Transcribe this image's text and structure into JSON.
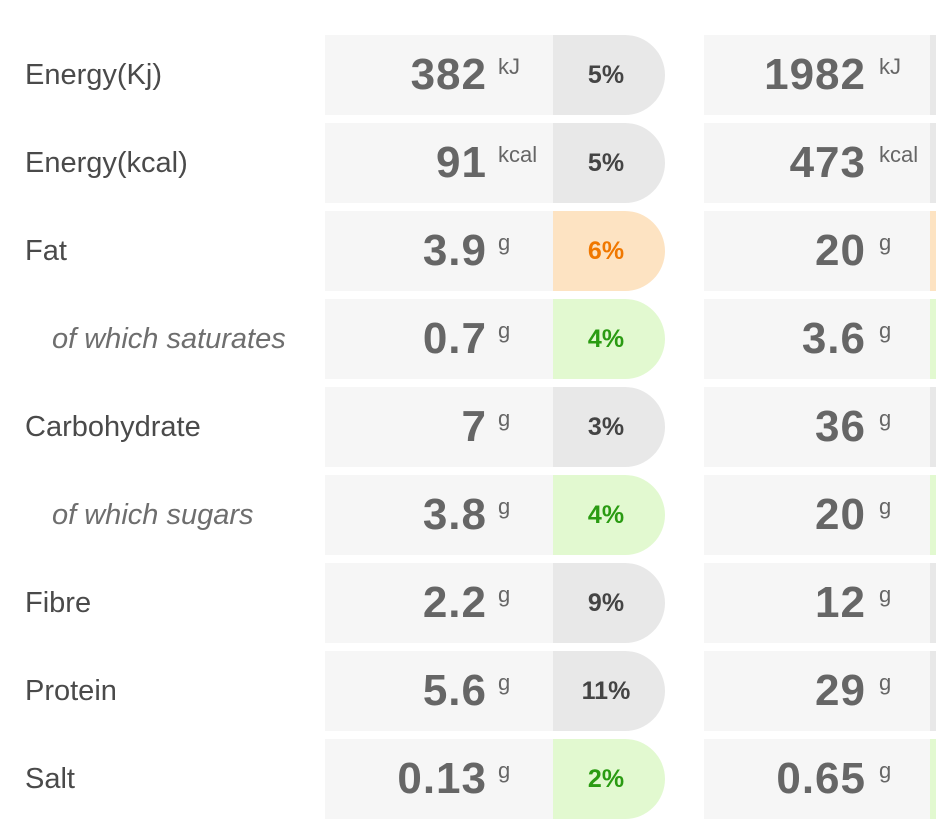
{
  "colors": {
    "grey_bg": "#e8e8e8",
    "grey_text": "#444444",
    "orange_bg": "#fde3c2",
    "orange_text": "#f07800",
    "green_bg": "#e2f9d0",
    "green_text": "#2a9b12"
  },
  "rows": [
    {
      "label": "Energy(Kj)",
      "sub": false,
      "per100_value": "382",
      "per100_unit": "kJ",
      "ri_percent": "5%",
      "level": "grey",
      "portion_value": "1982",
      "portion_unit": "kJ"
    },
    {
      "label": "Energy(kcal)",
      "sub": false,
      "per100_value": "91",
      "per100_unit": "kcal",
      "ri_percent": "5%",
      "level": "grey",
      "portion_value": "473",
      "portion_unit": "kcal"
    },
    {
      "label": "Fat",
      "sub": false,
      "per100_value": "3.9",
      "per100_unit": "g",
      "ri_percent": "6%",
      "level": "orange",
      "portion_value": "20",
      "portion_unit": "g"
    },
    {
      "label": "of which saturates",
      "sub": true,
      "per100_value": "0.7",
      "per100_unit": "g",
      "ri_percent": "4%",
      "level": "green",
      "portion_value": "3.6",
      "portion_unit": "g"
    },
    {
      "label": "Carbohydrate",
      "sub": false,
      "per100_value": "7",
      "per100_unit": "g",
      "ri_percent": "3%",
      "level": "grey",
      "portion_value": "36",
      "portion_unit": "g"
    },
    {
      "label": "of which sugars",
      "sub": true,
      "per100_value": "3.8",
      "per100_unit": "g",
      "ri_percent": "4%",
      "level": "green",
      "portion_value": "20",
      "portion_unit": "g"
    },
    {
      "label": "Fibre",
      "sub": false,
      "per100_value": "2.2",
      "per100_unit": "g",
      "ri_percent": "9%",
      "level": "grey",
      "portion_value": "12",
      "portion_unit": "g"
    },
    {
      "label": "Protein",
      "sub": false,
      "per100_value": "5.6",
      "per100_unit": "g",
      "ri_percent": "11%",
      "level": "grey",
      "portion_value": "29",
      "portion_unit": "g"
    },
    {
      "label": "Salt",
      "sub": false,
      "per100_value": "0.13",
      "per100_unit": "g",
      "ri_percent": "2%",
      "level": "green",
      "portion_value": "0.65",
      "portion_unit": "g"
    }
  ]
}
